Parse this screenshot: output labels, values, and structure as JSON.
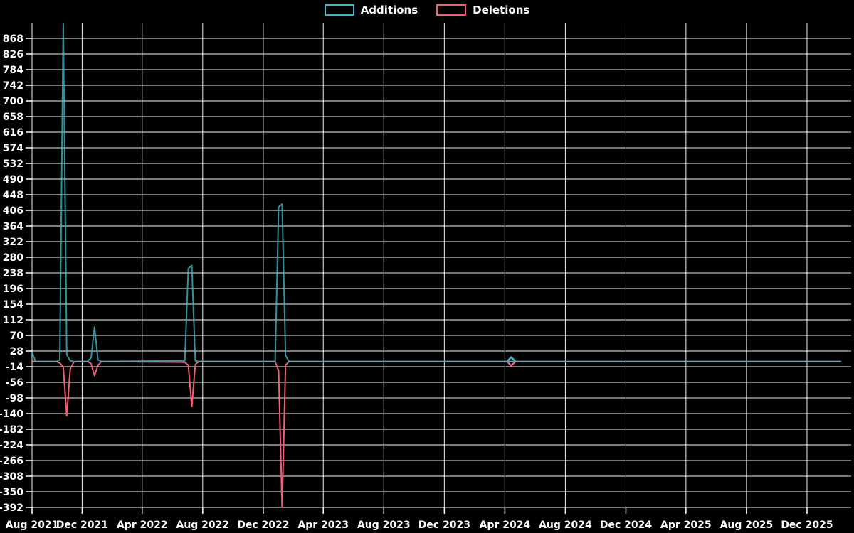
{
  "legend": {
    "items": [
      {
        "id": "additions",
        "label": "Additions",
        "color": "#3db7c6"
      },
      {
        "id": "deletions",
        "label": "Deletions",
        "color": "#f05f78"
      }
    ]
  },
  "chart_data": {
    "type": "line",
    "title": "",
    "xlabel": "",
    "ylabel": "",
    "background_color": "#000000",
    "grid_color": "#ffffff",
    "label_color": "#ffffff",
    "grid": true,
    "legend_position": "top-center",
    "x_axis": {
      "min": "2021-08-22",
      "max": "2026-02-28",
      "tick_dates": [
        "2021-08-22",
        "2021-12-01",
        "2022-04-01",
        "2022-08-01",
        "2022-12-01",
        "2023-04-01",
        "2023-08-01",
        "2023-12-01",
        "2024-04-01",
        "2024-08-01",
        "2024-12-01",
        "2025-04-01",
        "2025-08-01",
        "2025-12-01"
      ],
      "tick_labels": [
        "Aug 2021",
        "Dec 2021",
        "Apr 2022",
        "Aug 2022",
        "Dec 2022",
        "Apr 2023",
        "Aug 2023",
        "Dec 2023",
        "Apr 2024",
        "Aug 2024",
        "Dec 2024",
        "Apr 2025",
        "Aug 2025",
        "Dec 2025"
      ]
    },
    "y_axis": {
      "min": -392,
      "max": 910,
      "tick_min": -392,
      "tick_max": 868,
      "tick_step": 42,
      "tick_labels": [
        "868",
        "826",
        "784",
        "742",
        "700",
        "658",
        "616",
        "574",
        "532",
        "490",
        "448",
        "406",
        "364",
        "322",
        "280",
        "238",
        "196",
        "154",
        "112",
        "70",
        "28",
        "-14",
        "-56",
        "-98",
        "-140",
        "-182",
        "-224",
        "-266",
        "-308",
        "-350",
        "-392"
      ]
    },
    "dates": [
      "2021-08-22",
      "2021-08-29",
      "2021-10-10",
      "2021-10-17",
      "2021-10-24",
      "2021-10-31",
      "2021-11-07",
      "2021-11-14",
      "2021-11-21",
      "2021-12-12",
      "2021-12-19",
      "2021-12-26",
      "2022-01-02",
      "2022-01-09",
      "2022-06-26",
      "2022-07-03",
      "2022-07-10",
      "2022-07-17",
      "2022-07-24",
      "2022-12-25",
      "2023-01-01",
      "2023-01-08",
      "2023-01-15",
      "2023-01-22",
      "2024-04-14",
      "2026-02-08"
    ],
    "series": [
      {
        "name": "Additions",
        "color": "#3db7c6",
        "values": [
          25,
          0,
          0,
          4,
          908,
          18,
          2,
          0,
          0,
          0,
          10,
          93,
          4,
          0,
          2,
          250,
          258,
          2,
          0,
          0,
          415,
          423,
          16,
          0,
          0,
          0
        ]
      },
      {
        "name": "Deletions",
        "color": "#f05f78",
        "values": [
          0,
          0,
          0,
          -4,
          -15,
          -146,
          -20,
          -2,
          0,
          0,
          -6,
          -38,
          -10,
          0,
          -2,
          -10,
          -121,
          -8,
          0,
          0,
          -25,
          -392,
          -10,
          0,
          0,
          0
        ]
      }
    ],
    "markers": [
      {
        "date": "2024-04-14",
        "value": 0,
        "shape": "diamond"
      }
    ]
  }
}
